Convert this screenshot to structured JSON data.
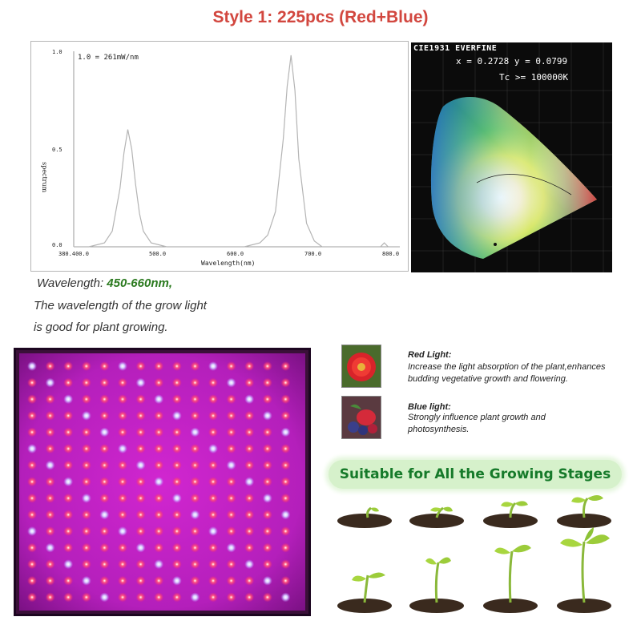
{
  "title": "Style 1:  225pcs (Red+Blue)",
  "spectrum": {
    "reference_label": "1.0 = 261mW/nm",
    "ylabel": "spectrum",
    "xlabel": "Wavelength(nm)",
    "y_ticks": [
      "1.0",
      "0.5",
      "0.0"
    ],
    "x_ticks": [
      "380.400.0",
      "500.0",
      "600.0",
      "700.0",
      "800.0"
    ],
    "line_color": "#b4b4b4"
  },
  "chart_data": {
    "type": "line",
    "title": "",
    "xlabel": "Wavelength(nm)",
    "ylabel": "spectrum",
    "xlim": [
      380.4,
      800
    ],
    "ylim": [
      0,
      1.0
    ],
    "series": [
      {
        "x": [
          380,
          400,
          420,
          430,
          440,
          445,
          450,
          455,
          460,
          465,
          470,
          480,
          500,
          550,
          600,
          620,
          630,
          640,
          650,
          655,
          660,
          665,
          670,
          680,
          690,
          700,
          750,
          775,
          780,
          785,
          800
        ],
        "y": [
          0.0,
          0.0,
          0.02,
          0.08,
          0.3,
          0.48,
          0.6,
          0.5,
          0.32,
          0.17,
          0.08,
          0.02,
          0.0,
          0.0,
          0.0,
          0.02,
          0.06,
          0.18,
          0.55,
          0.82,
          0.98,
          0.8,
          0.45,
          0.12,
          0.03,
          0.0,
          0.0,
          0.0,
          0.02,
          0.0,
          0.0
        ]
      }
    ]
  },
  "cie": {
    "title": "CIE1931 EVERFINE",
    "xy": "x = 0.2728 y = 0.0799",
    "tc": "Tc >= 100000K"
  },
  "wavelength": {
    "label": "Wavelength: ",
    "value": "450-660nm,",
    "line2": "The wavelength of the grow light",
    "line3": "is good for plant growing."
  },
  "red_light": {
    "title": "Red Light:",
    "text": "Increase the light absorption of the plant,enhances budding vegetative growth and flowering."
  },
  "blue_light": {
    "title": "Blue light:",
    "text": "Strongly influence plant growth and photosynthesis."
  },
  "banner": "Suitable for All the Growing Stages",
  "colors": {
    "title": "#d2473f",
    "wavelength_value": "#2b7a1f",
    "banner_text": "#167a2a",
    "banner_bg": "#d6f1cb",
    "panel_bg": "#3a1038",
    "led_red": "#ff3c6a",
    "led_blue": "#e8e4ff"
  }
}
